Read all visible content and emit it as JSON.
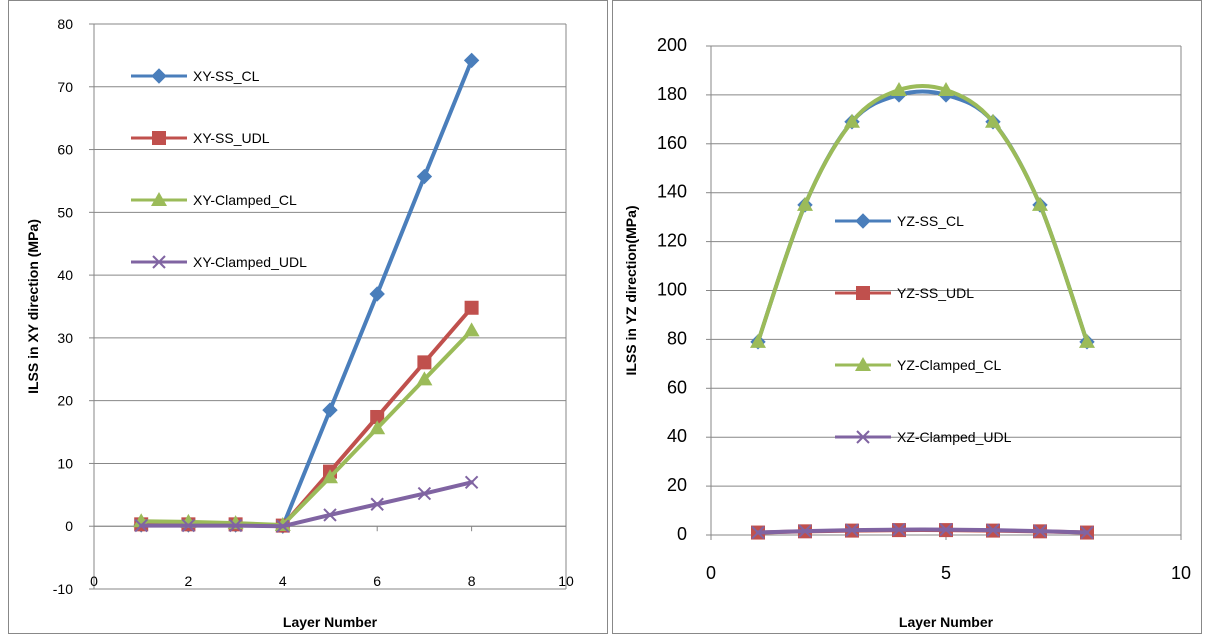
{
  "chart_data": [
    {
      "type": "line",
      "xlabel": "Layer Number",
      "ylabel": "ILSS in XY direction (MPa)",
      "xlim": [
        0,
        10
      ],
      "ylim": [
        -10,
        80
      ],
      "xticks": [
        0,
        2,
        4,
        6,
        8,
        10
      ],
      "yticks": [
        -10,
        0,
        10,
        20,
        30,
        40,
        50,
        60,
        70,
        80
      ],
      "grid": "horizontal",
      "legend_position": "left-inside",
      "series": [
        {
          "name": "XY-SS_CL",
          "color": "#4a7ebb",
          "marker": "diamond",
          "x": [
            1,
            2,
            3,
            4,
            5,
            6,
            7,
            8
          ],
          "y": [
            0.2,
            0.2,
            0.2,
            0,
            18.5,
            37,
            55.7,
            74.2
          ]
        },
        {
          "name": "XY-SS_UDL",
          "color": "#c0504d",
          "marker": "square",
          "x": [
            1,
            2,
            3,
            4,
            5,
            6,
            7,
            8
          ],
          "y": [
            0.3,
            0.3,
            0.3,
            0.1,
            8.7,
            17.4,
            26.1,
            34.8
          ]
        },
        {
          "name": "XY-Clamped_CL",
          "color": "#9bbb59",
          "marker": "triangle",
          "x": [
            1,
            2,
            3,
            4,
            5,
            6,
            7,
            8
          ],
          "y": [
            0.8,
            0.7,
            0.5,
            0.2,
            7.8,
            15.6,
            23.4,
            31.2
          ]
        },
        {
          "name": "XY-Clamped_UDL",
          "color": "#8064a2",
          "marker": "x",
          "x": [
            1,
            2,
            3,
            4,
            5,
            6,
            7,
            8
          ],
          "y": [
            0.1,
            0.1,
            0.1,
            0,
            1.8,
            3.5,
            5.2,
            7
          ]
        }
      ]
    },
    {
      "type": "line",
      "xlabel": "Layer Number",
      "ylabel": "ILSS in YZ direction(MPa)",
      "xlim": [
        0,
        10
      ],
      "ylim": [
        0,
        200
      ],
      "xticks": [
        0,
        5,
        10
      ],
      "yticks": [
        0,
        20,
        40,
        60,
        80,
        100,
        120,
        140,
        160,
        180,
        200
      ],
      "grid": "horizontal",
      "legend_position": "center-inside",
      "series": [
        {
          "name": "YZ-SS_CL",
          "color": "#4a7ebb",
          "marker": "diamond",
          "x": [
            1,
            2,
            3,
            4,
            5,
            6,
            7,
            8
          ],
          "y": [
            79,
            135,
            169,
            180,
            180,
            169,
            135,
            79
          ]
        },
        {
          "name": "YZ-SS_UDL",
          "color": "#c0504d",
          "marker": "square",
          "x": [
            1,
            2,
            3,
            4,
            5,
            6,
            7,
            8
          ],
          "y": [
            1,
            1.5,
            1.8,
            2,
            2,
            1.8,
            1.5,
            1
          ]
        },
        {
          "name": "YZ-Clamped_CL",
          "color": "#9bbb59",
          "marker": "triangle",
          "x": [
            1,
            2,
            3,
            4,
            5,
            6,
            7,
            8
          ],
          "y": [
            79,
            135,
            169,
            182,
            182,
            169,
            135,
            79
          ]
        },
        {
          "name": "XZ-Clamped_UDL",
          "color": "#8064a2",
          "marker": "x",
          "x": [
            1,
            2,
            3,
            4,
            5,
            6,
            7,
            8
          ],
          "y": [
            1,
            1.6,
            2,
            2.2,
            2.2,
            2,
            1.6,
            1
          ]
        }
      ]
    }
  ]
}
